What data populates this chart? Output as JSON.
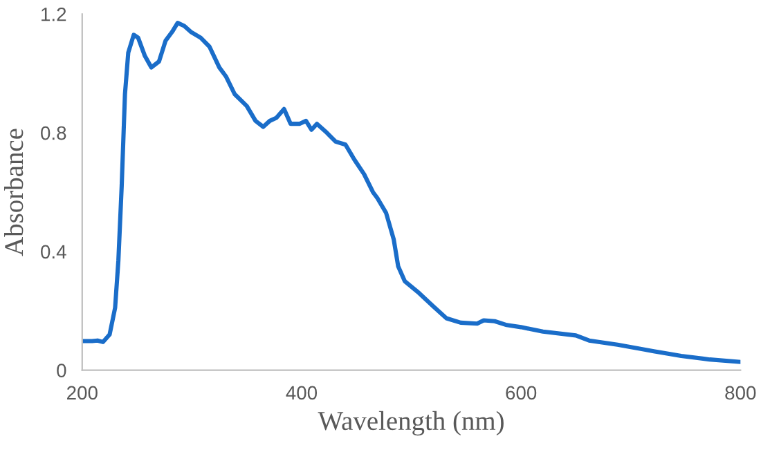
{
  "chart_data": {
    "type": "line",
    "xlabel": "Wavelength (nm)",
    "ylabel": "Absorbance",
    "xlim": [
      200,
      800
    ],
    "xticks": [
      200,
      400,
      600,
      800
    ],
    "ylim": [
      0,
      1.2
    ],
    "yticks": [
      0,
      0.4,
      0.8,
      1.2
    ],
    "grid": false,
    "marker": "none",
    "line_style": "solid",
    "series": [
      {
        "color": "#1a6dc9",
        "x": [
          200,
          209,
          214,
          219,
          225,
          230,
          233,
          236,
          239,
          242,
          247,
          251,
          257,
          263,
          270,
          276,
          282,
          287,
          293,
          299,
          308,
          316,
          325,
          331,
          339,
          350,
          358,
          365,
          371,
          377,
          384,
          390,
          398,
          404,
          409,
          414,
          423,
          431,
          440,
          448,
          457,
          465,
          469,
          477,
          484,
          488,
          494,
          507,
          520,
          532,
          545,
          560,
          566,
          576,
          587,
          600,
          620,
          650,
          662,
          688,
          721,
          746,
          772,
          799
        ],
        "values": [
          0.098,
          0.098,
          0.1,
          0.095,
          0.12,
          0.21,
          0.37,
          0.62,
          0.93,
          1.07,
          1.13,
          1.12,
          1.06,
          1.02,
          1.04,
          1.11,
          1.14,
          1.17,
          1.16,
          1.14,
          1.12,
          1.09,
          1.02,
          0.99,
          0.93,
          0.89,
          0.84,
          0.82,
          0.84,
          0.85,
          0.88,
          0.83,
          0.83,
          0.84,
          0.81,
          0.83,
          0.8,
          0.77,
          0.76,
          0.71,
          0.66,
          0.6,
          0.58,
          0.53,
          0.44,
          0.35,
          0.3,
          0.26,
          0.215,
          0.175,
          0.16,
          0.157,
          0.168,
          0.165,
          0.152,
          0.145,
          0.13,
          0.117,
          0.1,
          0.086,
          0.064,
          0.048,
          0.036,
          0.028
        ]
      }
    ]
  }
}
